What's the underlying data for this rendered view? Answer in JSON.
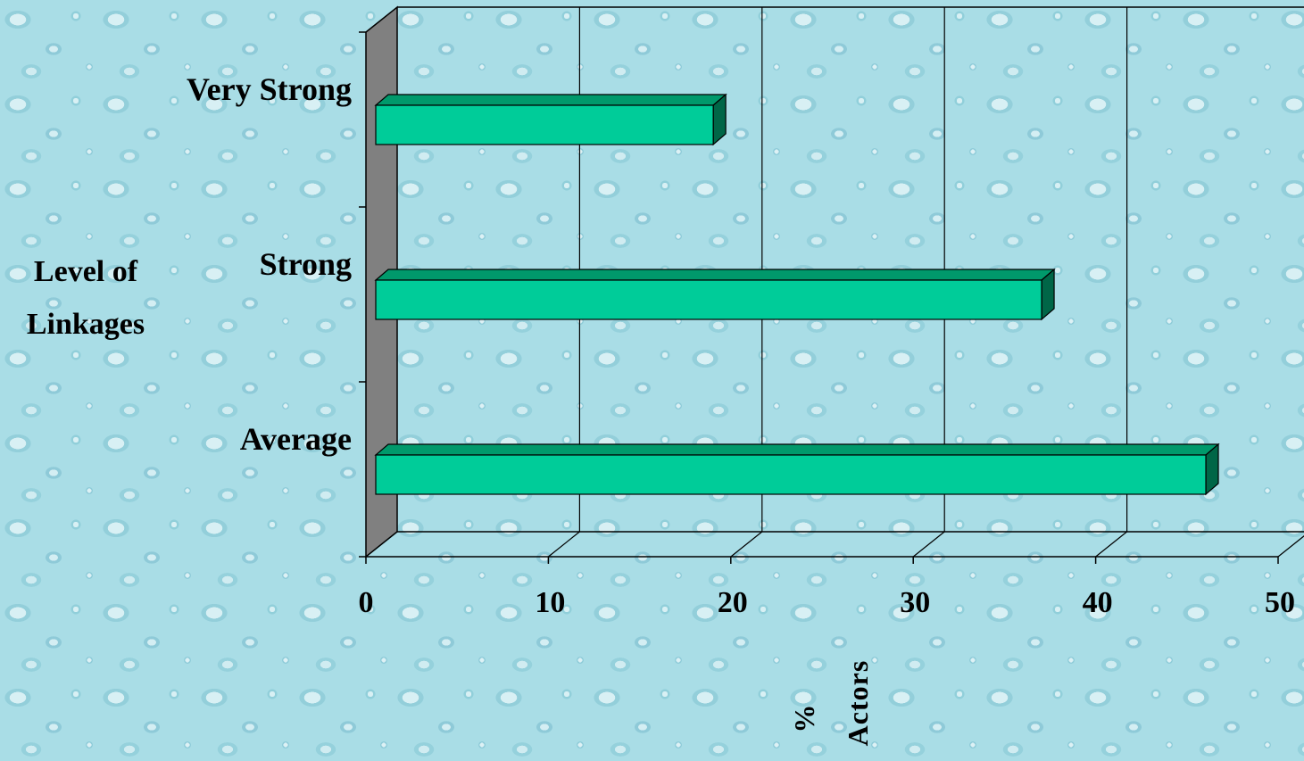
{
  "chart_data": {
    "type": "bar",
    "orientation": "horizontal",
    "categories": [
      "Average",
      "Strong",
      "Very Strong"
    ],
    "values": [
      45.5,
      36.5,
      18.5
    ],
    "ylabel_lines": [
      "Level of",
      "Linkages"
    ],
    "xlabel_lines": [
      "%",
      "Actors"
    ],
    "xticks": [
      "0",
      "10",
      "20",
      "30",
      "40",
      "50"
    ],
    "xlim": [
      0,
      50
    ],
    "grid": true,
    "legend": "none",
    "colors": {
      "bar": "#00cc99",
      "bar_top": "#00996b",
      "bar_side": "#006647",
      "wall": "#808080",
      "grid": "#000000"
    }
  }
}
